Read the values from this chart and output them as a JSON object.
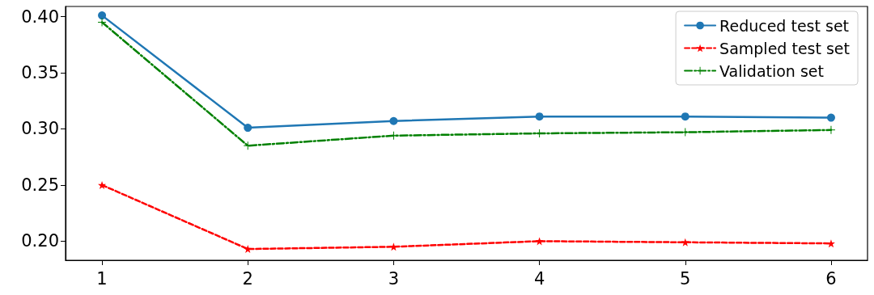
{
  "chart_data": {
    "type": "line",
    "x": [
      1,
      2,
      3,
      4,
      5,
      6
    ],
    "series": [
      {
        "name": "Reduced test set",
        "color": "#1f77b4",
        "marker": "circle",
        "line_style": "solid",
        "values": [
          0.401,
          0.301,
          0.307,
          0.311,
          0.311,
          0.31
        ]
      },
      {
        "name": "Sampled test set",
        "color": "#ff0000",
        "marker": "star",
        "line_style": "dashed",
        "values": [
          0.25,
          0.193,
          0.195,
          0.2,
          0.199,
          0.198
        ]
      },
      {
        "name": "Validation set",
        "color": "#008000",
        "marker": "cross",
        "line_style": "dashdot",
        "values": [
          0.395,
          0.285,
          0.294,
          0.296,
          0.297,
          0.299
        ]
      }
    ],
    "xlim": [
      0.75,
      6.25
    ],
    "xticks": [
      1,
      2,
      3,
      4,
      5,
      6
    ],
    "ylim": [
      0.183,
      0.409
    ],
    "yticks": [
      {
        "value": 0.2,
        "label": "0.20"
      },
      0.25,
      {
        "value": 0.3,
        "label": "0.30"
      },
      0.35,
      {
        "value": 0.4,
        "label": "0.40"
      }
    ],
    "grid": false,
    "legend": "top right"
  }
}
